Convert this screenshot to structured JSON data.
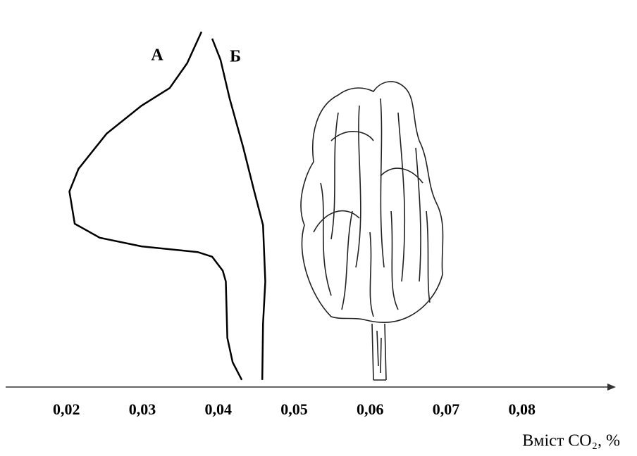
{
  "chart_data": {
    "type": "line",
    "xlabel": "Вміст CO₂, %",
    "xlim": [
      0.012,
      0.092
    ],
    "ylim": [
      0,
      100
    ],
    "xticks": [
      {
        "value": 0.02,
        "label": "0,02"
      },
      {
        "value": 0.03,
        "label": "0,03"
      },
      {
        "value": 0.04,
        "label": "0,04"
      },
      {
        "value": 0.05,
        "label": "0,05"
      },
      {
        "value": 0.06,
        "label": "0,06"
      },
      {
        "value": 0.07,
        "label": "0,07"
      },
      {
        "value": 0.08,
        "label": "0,08"
      }
    ],
    "series": [
      {
        "name": "А",
        "color": "#000000",
        "x": [
          0.0431,
          0.0419,
          0.0412,
          0.041,
          0.0406,
          0.0392,
          0.0373,
          0.0299,
          0.0244,
          0.0211,
          0.0204,
          0.0216,
          0.0253,
          0.0299,
          0.0336,
          0.0359,
          0.0378
        ],
        "values": [
          2.0,
          6.9,
          13.7,
          29.4,
          32.4,
          36.3,
          37.6,
          39.2,
          41.6,
          45.5,
          54.5,
          60.8,
          70.6,
          78.4,
          83.3,
          90.2,
          99.0
        ]
      },
      {
        "name": "Б",
        "color": "#000000",
        "x": [
          0.0458,
          0.0459,
          0.0462,
          0.0459,
          0.0447,
          0.0433,
          0.0415,
          0.0403,
          0.0392
        ],
        "values": [
          2.0,
          17.6,
          29.4,
          45.1,
          54.9,
          66.7,
          80.4,
          91.2,
          97.1
        ]
      }
    ]
  }
}
